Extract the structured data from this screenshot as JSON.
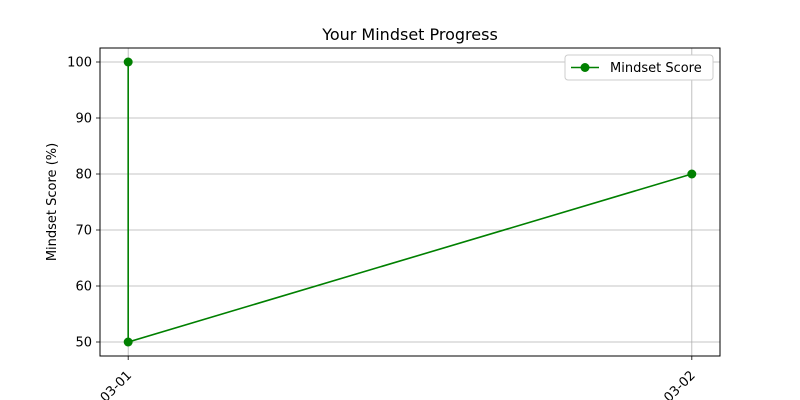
{
  "chart_data": {
    "type": "line",
    "title": "Your Mindset Progress",
    "xlabel": "",
    "ylabel": "Mindset Score (%)",
    "x_ticks": [
      "03-01",
      "03-02"
    ],
    "y_ticks": [
      50,
      60,
      70,
      80,
      90,
      100
    ],
    "ylim": [
      47.5,
      102.5
    ],
    "xlim": [
      -0.05,
      1.05
    ],
    "grid": true,
    "legend": {
      "placement": "top-right"
    },
    "series": [
      {
        "name": "Mindset Score",
        "color": "#008000",
        "marker": "circle",
        "points": [
          {
            "x": 0,
            "x_label": "03-01",
            "y": 100
          },
          {
            "x": 0,
            "x_label": "03-01",
            "y": 50
          },
          {
            "x": 1,
            "x_label": "03-02",
            "y": 80
          }
        ]
      }
    ]
  }
}
